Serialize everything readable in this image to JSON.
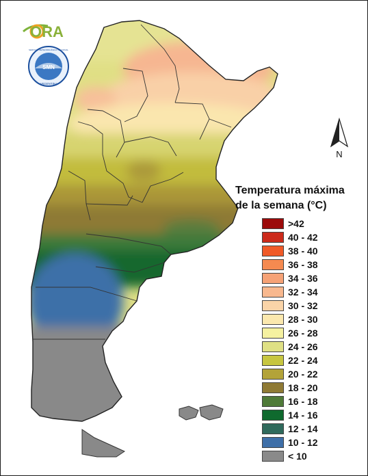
{
  "legend": {
    "title_line1": "Temperatura máxima",
    "title_line2": "de la semana (°C)",
    "items": [
      {
        "label": ">42",
        "color": "#9c0a0a"
      },
      {
        "label": "40 - 42",
        "color": "#cc2a1a"
      },
      {
        "label": "38 - 40",
        "color": "#f05a28"
      },
      {
        "label": "36 - 38",
        "color": "#f58a50"
      },
      {
        "label": "34 - 36",
        "color": "#f6a276"
      },
      {
        "label": "32 - 34",
        "color": "#f8b88e"
      },
      {
        "label": "30 - 32",
        "color": "#fad4a8"
      },
      {
        "label": "28 - 30",
        "color": "#fbe8ae"
      },
      {
        "label": "26 - 28",
        "color": "#f5f1a0"
      },
      {
        "label": "24 - 26",
        "color": "#dfe084"
      },
      {
        "label": "22 - 24",
        "color": "#c7c640"
      },
      {
        "label": "20 - 22",
        "color": "#b3a339"
      },
      {
        "label": "18 - 20",
        "color": "#8f7a34"
      },
      {
        "label": "16 - 18",
        "color": "#4f7a38"
      },
      {
        "label": "14 - 16",
        "color": "#0f6a2e"
      },
      {
        "label": "12 - 14",
        "color": "#2f6a5c"
      },
      {
        "label": "10 - 12",
        "color": "#3e6fa8"
      },
      {
        "label": "< 10",
        "color": "#8a8a8a"
      }
    ]
  },
  "logos": {
    "ora_text": "ORA",
    "smn_ring_text": "SERVICIO METEOROLÓGICO NACIONAL",
    "smn_bottom_text": "ARGENTINA",
    "smn_center_text": "SMN"
  },
  "compass": {
    "north_label": "N"
  }
}
